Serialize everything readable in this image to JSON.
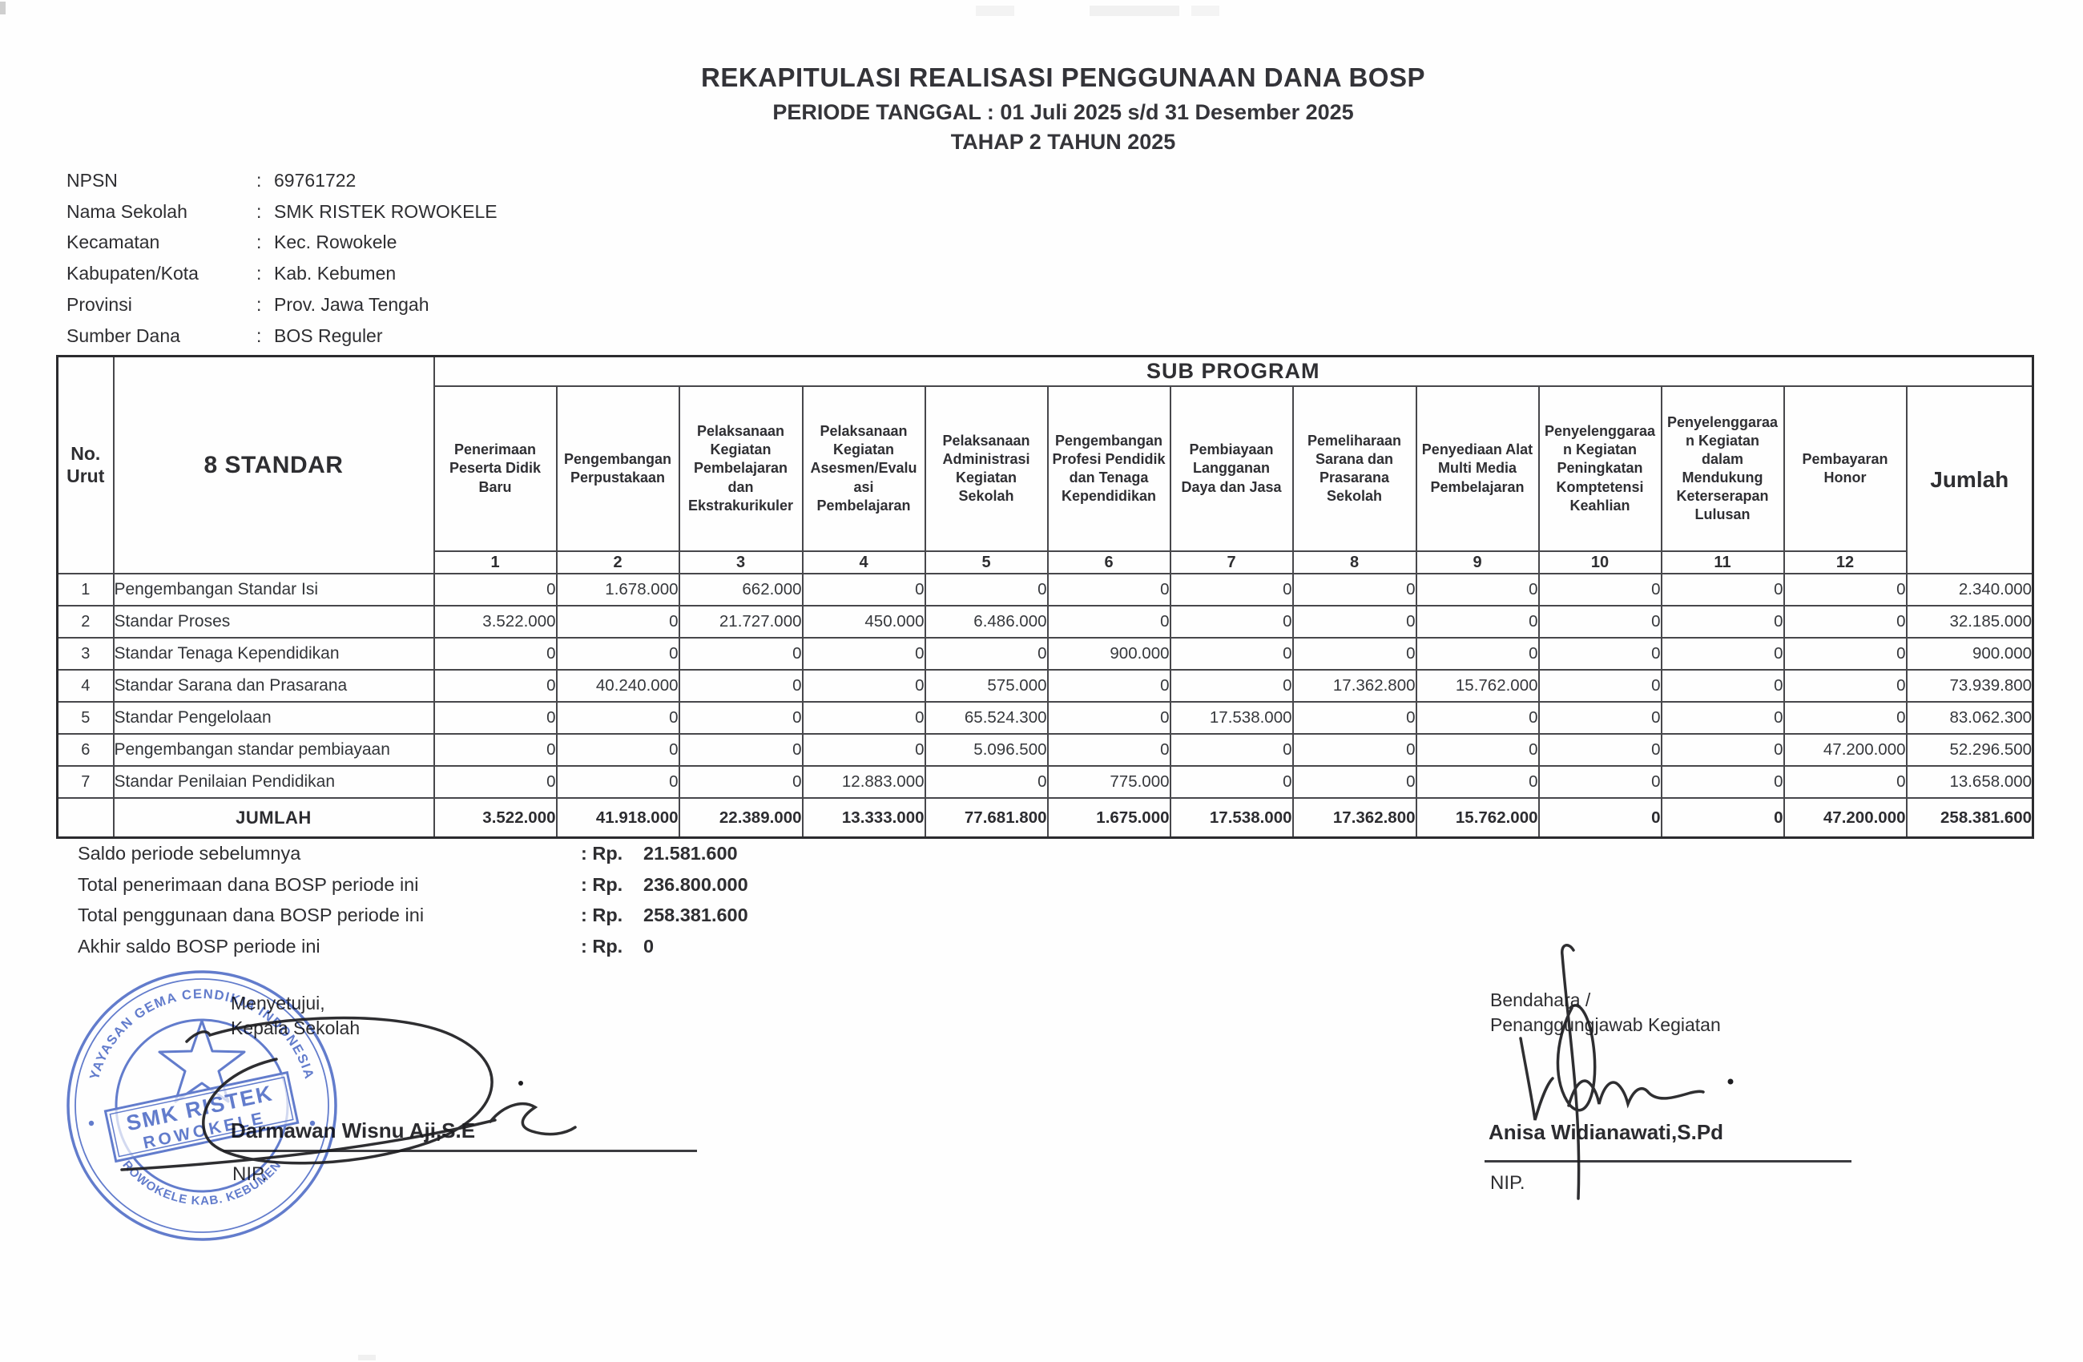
{
  "title": {
    "line1": "REKAPITULASI REALISASI PENGGUNAAN DANA BOSP",
    "line2": "PERIODE TANGGAL : 01 Juli 2025 s/d 31 Desember 2025",
    "line3": "TAHAP 2 TAHUN 2025"
  },
  "school_info": {
    "separator": ":",
    "rows": [
      {
        "label": "NPSN",
        "value": "69761722"
      },
      {
        "label": "Nama Sekolah",
        "value": "SMK RISTEK ROWOKELE"
      },
      {
        "label": "Kecamatan",
        "value": "Kec. Rowokele"
      },
      {
        "label": "Kabupaten/Kota",
        "value": "Kab. Kebumen"
      },
      {
        "label": "Provinsi",
        "value": "Prov. Jawa Tengah"
      },
      {
        "label": "Sumber Dana",
        "value": "BOS Reguler"
      }
    ]
  },
  "table": {
    "no_urut_label": "No.\nUrut",
    "standar_label": "8 STANDAR",
    "sub_program_label": "SUB PROGRAM",
    "jumlah_label": "Jumlah",
    "sub_columns": [
      {
        "label": "Penerimaan\nPeserta Didik\nBaru",
        "number": "1"
      },
      {
        "label": "Pengembangan\nPerpustakaan",
        "number": "2"
      },
      {
        "label": "Pelaksanaan\nKegiatan\nPembelajaran\ndan\nEkstrakurikuler",
        "number": "3"
      },
      {
        "label": "Pelaksanaan\nKegiatan\nAsesmen/Evalu\nasi\nPembelajaran",
        "number": "4"
      },
      {
        "label": "Pelaksanaan\nAdministrasi\nKegiatan\nSekolah",
        "number": "5"
      },
      {
        "label": "Pengembangan\nProfesi Pendidik\ndan Tenaga\nKependidikan",
        "number": "6"
      },
      {
        "label": "Pembiayaan\nLangganan\nDaya dan Jasa",
        "number": "7"
      },
      {
        "label": "Pemeliharaan\nSarana dan\nPrasarana\nSekolah",
        "number": "8"
      },
      {
        "label": "Penyediaan Alat\nMulti Media\nPembelajaran",
        "number": "9"
      },
      {
        "label": "Penyelenggaraa\nn Kegiatan\nPeningkatan\nKomptetensi\nKeahlian",
        "number": "10"
      },
      {
        "label": "Penyelenggaraa\nn Kegiatan\ndalam\nMendukung\nKeterserapan\nLulusan",
        "number": "11"
      },
      {
        "label": "Pembayaran\nHonor",
        "number": "12"
      }
    ],
    "rows": [
      {
        "no": "1",
        "label": "Pengembangan Standar Isi",
        "values": [
          "0",
          "1.678.000",
          "662.000",
          "0",
          "0",
          "0",
          "0",
          "0",
          "0",
          "0",
          "0",
          "0"
        ],
        "jumlah": "2.340.000"
      },
      {
        "no": "2",
        "label": "Standar Proses",
        "values": [
          "3.522.000",
          "0",
          "21.727.000",
          "450.000",
          "6.486.000",
          "0",
          "0",
          "0",
          "0",
          "0",
          "0",
          "0"
        ],
        "jumlah": "32.185.000"
      },
      {
        "no": "3",
        "label": "Standar Tenaga Kependidikan",
        "values": [
          "0",
          "0",
          "0",
          "0",
          "0",
          "900.000",
          "0",
          "0",
          "0",
          "0",
          "0",
          "0"
        ],
        "jumlah": "900.000"
      },
      {
        "no": "4",
        "label": "Standar Sarana dan Prasarana",
        "values": [
          "0",
          "40.240.000",
          "0",
          "0",
          "575.000",
          "0",
          "0",
          "17.362.800",
          "15.762.000",
          "0",
          "0",
          "0"
        ],
        "jumlah": "73.939.800"
      },
      {
        "no": "5",
        "label": "Standar Pengelolaan",
        "values": [
          "0",
          "0",
          "0",
          "0",
          "65.524.300",
          "0",
          "17.538.000",
          "0",
          "0",
          "0",
          "0",
          "0"
        ],
        "jumlah": "83.062.300"
      },
      {
        "no": "6",
        "label": "Pengembangan standar pembiayaan",
        "values": [
          "0",
          "0",
          "0",
          "0",
          "5.096.500",
          "0",
          "0",
          "0",
          "0",
          "0",
          "0",
          "47.200.000"
        ],
        "jumlah": "52.296.500"
      },
      {
        "no": "7",
        "label": "Standar Penilaian Pendidikan",
        "values": [
          "0",
          "0",
          "0",
          "12.883.000",
          "0",
          "775.000",
          "0",
          "0",
          "0",
          "0",
          "0",
          "0"
        ],
        "jumlah": "13.658.000"
      }
    ],
    "total_row": {
      "label": "JUMLAH",
      "values": [
        "3.522.000",
        "41.918.000",
        "22.389.000",
        "13.333.000",
        "77.681.800",
        "1.675.000",
        "17.538.000",
        "17.362.800",
        "15.762.000",
        "0",
        "0",
        "47.200.000"
      ],
      "jumlah": "258.381.600"
    }
  },
  "summary": {
    "rows": [
      {
        "label": "Saldo periode sebelumnya",
        "prefix": ": Rp.",
        "value": "21.581.600"
      },
      {
        "label": "Total penerimaan dana BOSP periode ini",
        "prefix": ": Rp.",
        "value": "236.800.000"
      },
      {
        "label": "Total penggunaan dana BOSP periode ini",
        "prefix": ": Rp.",
        "value": "258.381.600"
      },
      {
        "label": "Akhir saldo BOSP periode ini",
        "prefix": ": Rp.",
        "value": "0"
      }
    ]
  },
  "signatures": {
    "left": {
      "line1": "Menyetujui,",
      "line2": "Kepala Sekolah",
      "name": "Darmawan Wisnu Aji,S.E",
      "nip": "NIP."
    },
    "right": {
      "line1": "Bendahara /",
      "line2": "Penanggungjawab Kegiatan",
      "name": "Anisa Widianawati,S.Pd",
      "nip": "NIP."
    }
  },
  "stamp": {
    "arc_text_top": "YAYASAN GEMA CENDIKIA INDONESIA",
    "arc_text_bottom": "ROWOKELE KAB. KEBUMEN",
    "center_line1": "SMK RISTEK",
    "center_line2": "ROWOKELE",
    "color": "#3f5fc2"
  }
}
